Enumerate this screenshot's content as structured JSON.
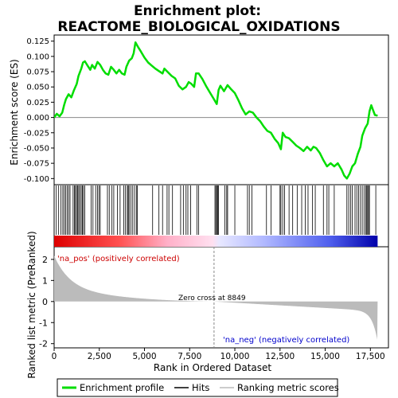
{
  "chart_data": {
    "type": "line",
    "title_line1": "Enrichment plot:",
    "title_line2": "REACTOME_BIOLOGICAL_OXIDATIONS",
    "ylabel_top": "Enrichment score (ES)",
    "ylabel_bottom": "Ranked list metric (PreRanked)",
    "xlabel": "Rank in Ordered Dataset",
    "xlim": [
      0,
      18500
    ],
    "es_ylim": [
      -0.11,
      0.135
    ],
    "metric_ylim": [
      -2.2,
      2.6
    ],
    "es_ticks": [
      "0.125",
      "0.100",
      "0.075",
      "0.050",
      "0.025",
      "0.000",
      "-0.025",
      "-0.050",
      "-0.075",
      "-0.100"
    ],
    "es_tick_values": [
      0.125,
      0.1,
      0.075,
      0.05,
      0.025,
      0.0,
      -0.025,
      -0.05,
      -0.075,
      -0.1
    ],
    "metric_ticks": [
      "2",
      "1",
      "0",
      "-1",
      "-2"
    ],
    "metric_tick_values": [
      2,
      1,
      0,
      -1,
      -2
    ],
    "x_ticks": [
      "0",
      "2,500",
      "5,000",
      "7,500",
      "10,000",
      "12,500",
      "15,000",
      "17,500"
    ],
    "x_tick_values": [
      0,
      2500,
      5000,
      7500,
      10000,
      12500,
      15000,
      17500
    ],
    "pos_label": "'na_pos' (positively correlated)",
    "neg_label": "'na_neg' (negatively correlated)",
    "zero_cross_label": "Zero cross at 8849",
    "zero_cross": 8849,
    "n_genes": 17900,
    "legend": [
      "Enrichment profile",
      "Hits",
      "Ranking metric scores"
    ],
    "es_points": [
      [
        0,
        0.0
      ],
      [
        150,
        0.006
      ],
      [
        300,
        0.002
      ],
      [
        450,
        0.008
      ],
      [
        550,
        0.02
      ],
      [
        650,
        0.03
      ],
      [
        800,
        0.038
      ],
      [
        950,
        0.033
      ],
      [
        1100,
        0.045
      ],
      [
        1250,
        0.055
      ],
      [
        1350,
        0.068
      ],
      [
        1500,
        0.08
      ],
      [
        1600,
        0.09
      ],
      [
        1700,
        0.092
      ],
      [
        1850,
        0.085
      ],
      [
        2000,
        0.078
      ],
      [
        2100,
        0.086
      ],
      [
        2250,
        0.08
      ],
      [
        2400,
        0.091
      ],
      [
        2550,
        0.086
      ],
      [
        2700,
        0.078
      ],
      [
        2850,
        0.072
      ],
      [
        3000,
        0.07
      ],
      [
        3150,
        0.083
      ],
      [
        3300,
        0.078
      ],
      [
        3450,
        0.072
      ],
      [
        3600,
        0.078
      ],
      [
        3750,
        0.072
      ],
      [
        3900,
        0.07
      ],
      [
        4000,
        0.083
      ],
      [
        4150,
        0.093
      ],
      [
        4300,
        0.097
      ],
      [
        4400,
        0.105
      ],
      [
        4500,
        0.123
      ],
      [
        4650,
        0.115
      ],
      [
        4800,
        0.108
      ],
      [
        5000,
        0.098
      ],
      [
        5200,
        0.09
      ],
      [
        5400,
        0.085
      ],
      [
        5600,
        0.08
      ],
      [
        5800,
        0.076
      ],
      [
        6000,
        0.072
      ],
      [
        6100,
        0.08
      ],
      [
        6300,
        0.074
      ],
      [
        6500,
        0.068
      ],
      [
        6700,
        0.064
      ],
      [
        6900,
        0.052
      ],
      [
        7100,
        0.046
      ],
      [
        7300,
        0.05
      ],
      [
        7450,
        0.058
      ],
      [
        7600,
        0.055
      ],
      [
        7750,
        0.05
      ],
      [
        7850,
        0.072
      ],
      [
        8000,
        0.072
      ],
      [
        8200,
        0.063
      ],
      [
        8400,
        0.052
      ],
      [
        8600,
        0.042
      ],
      [
        8800,
        0.032
      ],
      [
        9000,
        0.022
      ],
      [
        9100,
        0.045
      ],
      [
        9200,
        0.052
      ],
      [
        9400,
        0.043
      ],
      [
        9600,
        0.053
      ],
      [
        9800,
        0.046
      ],
      [
        10000,
        0.04
      ],
      [
        10200,
        0.028
      ],
      [
        10400,
        0.015
      ],
      [
        10600,
        0.005
      ],
      [
        10800,
        0.01
      ],
      [
        11000,
        0.008
      ],
      [
        11200,
        0.0
      ],
      [
        11400,
        -0.006
      ],
      [
        11600,
        -0.015
      ],
      [
        11800,
        -0.022
      ],
      [
        12000,
        -0.025
      ],
      [
        12200,
        -0.035
      ],
      [
        12400,
        -0.042
      ],
      [
        12550,
        -0.052
      ],
      [
        12650,
        -0.025
      ],
      [
        12800,
        -0.032
      ],
      [
        13000,
        -0.034
      ],
      [
        13200,
        -0.04
      ],
      [
        13400,
        -0.046
      ],
      [
        13600,
        -0.05
      ],
      [
        13800,
        -0.055
      ],
      [
        14000,
        -0.048
      ],
      [
        14200,
        -0.054
      ],
      [
        14350,
        -0.048
      ],
      [
        14500,
        -0.05
      ],
      [
        14700,
        -0.058
      ],
      [
        14900,
        -0.07
      ],
      [
        15100,
        -0.08
      ],
      [
        15300,
        -0.075
      ],
      [
        15500,
        -0.08
      ],
      [
        15700,
        -0.075
      ],
      [
        15900,
        -0.085
      ],
      [
        16050,
        -0.095
      ],
      [
        16200,
        -0.1
      ],
      [
        16350,
        -0.092
      ],
      [
        16500,
        -0.08
      ],
      [
        16650,
        -0.075
      ],
      [
        16800,
        -0.06
      ],
      [
        16950,
        -0.048
      ],
      [
        17050,
        -0.03
      ],
      [
        17200,
        -0.018
      ],
      [
        17350,
        -0.01
      ],
      [
        17450,
        0.01
      ],
      [
        17550,
        0.02
      ],
      [
        17650,
        0.012
      ],
      [
        17750,
        0.004
      ],
      [
        17900,
        0.003
      ]
    ],
    "hits": [
      120,
      250,
      380,
      480,
      560,
      640,
      720,
      800,
      880,
      1050,
      1120,
      1180,
      1240,
      1300,
      1360,
      1420,
      1500,
      1560,
      1620,
      1700,
      2050,
      2150,
      2300,
      2400,
      2480,
      2550,
      2950,
      3050,
      3200,
      3300,
      3500,
      3650,
      3850,
      3950,
      4050,
      4100,
      4150,
      4250,
      4350,
      4450,
      4550,
      4600,
      5450,
      5800,
      6000,
      6250,
      6350,
      6550,
      7000,
      7150,
      7300,
      7400,
      7550,
      7900,
      8000,
      8900,
      8950,
      9000,
      9050,
      9100,
      9450,
      9550,
      9600,
      10000,
      10700,
      10800,
      10950,
      11750,
      12000,
      12500,
      12550,
      12650,
      12750,
      13000,
      13200,
      13450,
      13700,
      13900,
      14050,
      14300,
      14450,
      14900,
      15100,
      15200,
      15500,
      16200,
      16300,
      16400,
      16500,
      16650,
      16750,
      16850,
      16950,
      17050,
      17150,
      17250,
      17300,
      17350,
      17400,
      17450,
      17800
    ],
    "colors": {
      "es_line": "#00dd00",
      "hits": "#000000",
      "metric_fill": "#bbbbbb",
      "zero_cross_line": "#888888",
      "pos_text": "#cc0000",
      "neg_text": "#0000cc",
      "bar_pos": "#dd0000",
      "bar_neg": "#0000aa"
    }
  }
}
